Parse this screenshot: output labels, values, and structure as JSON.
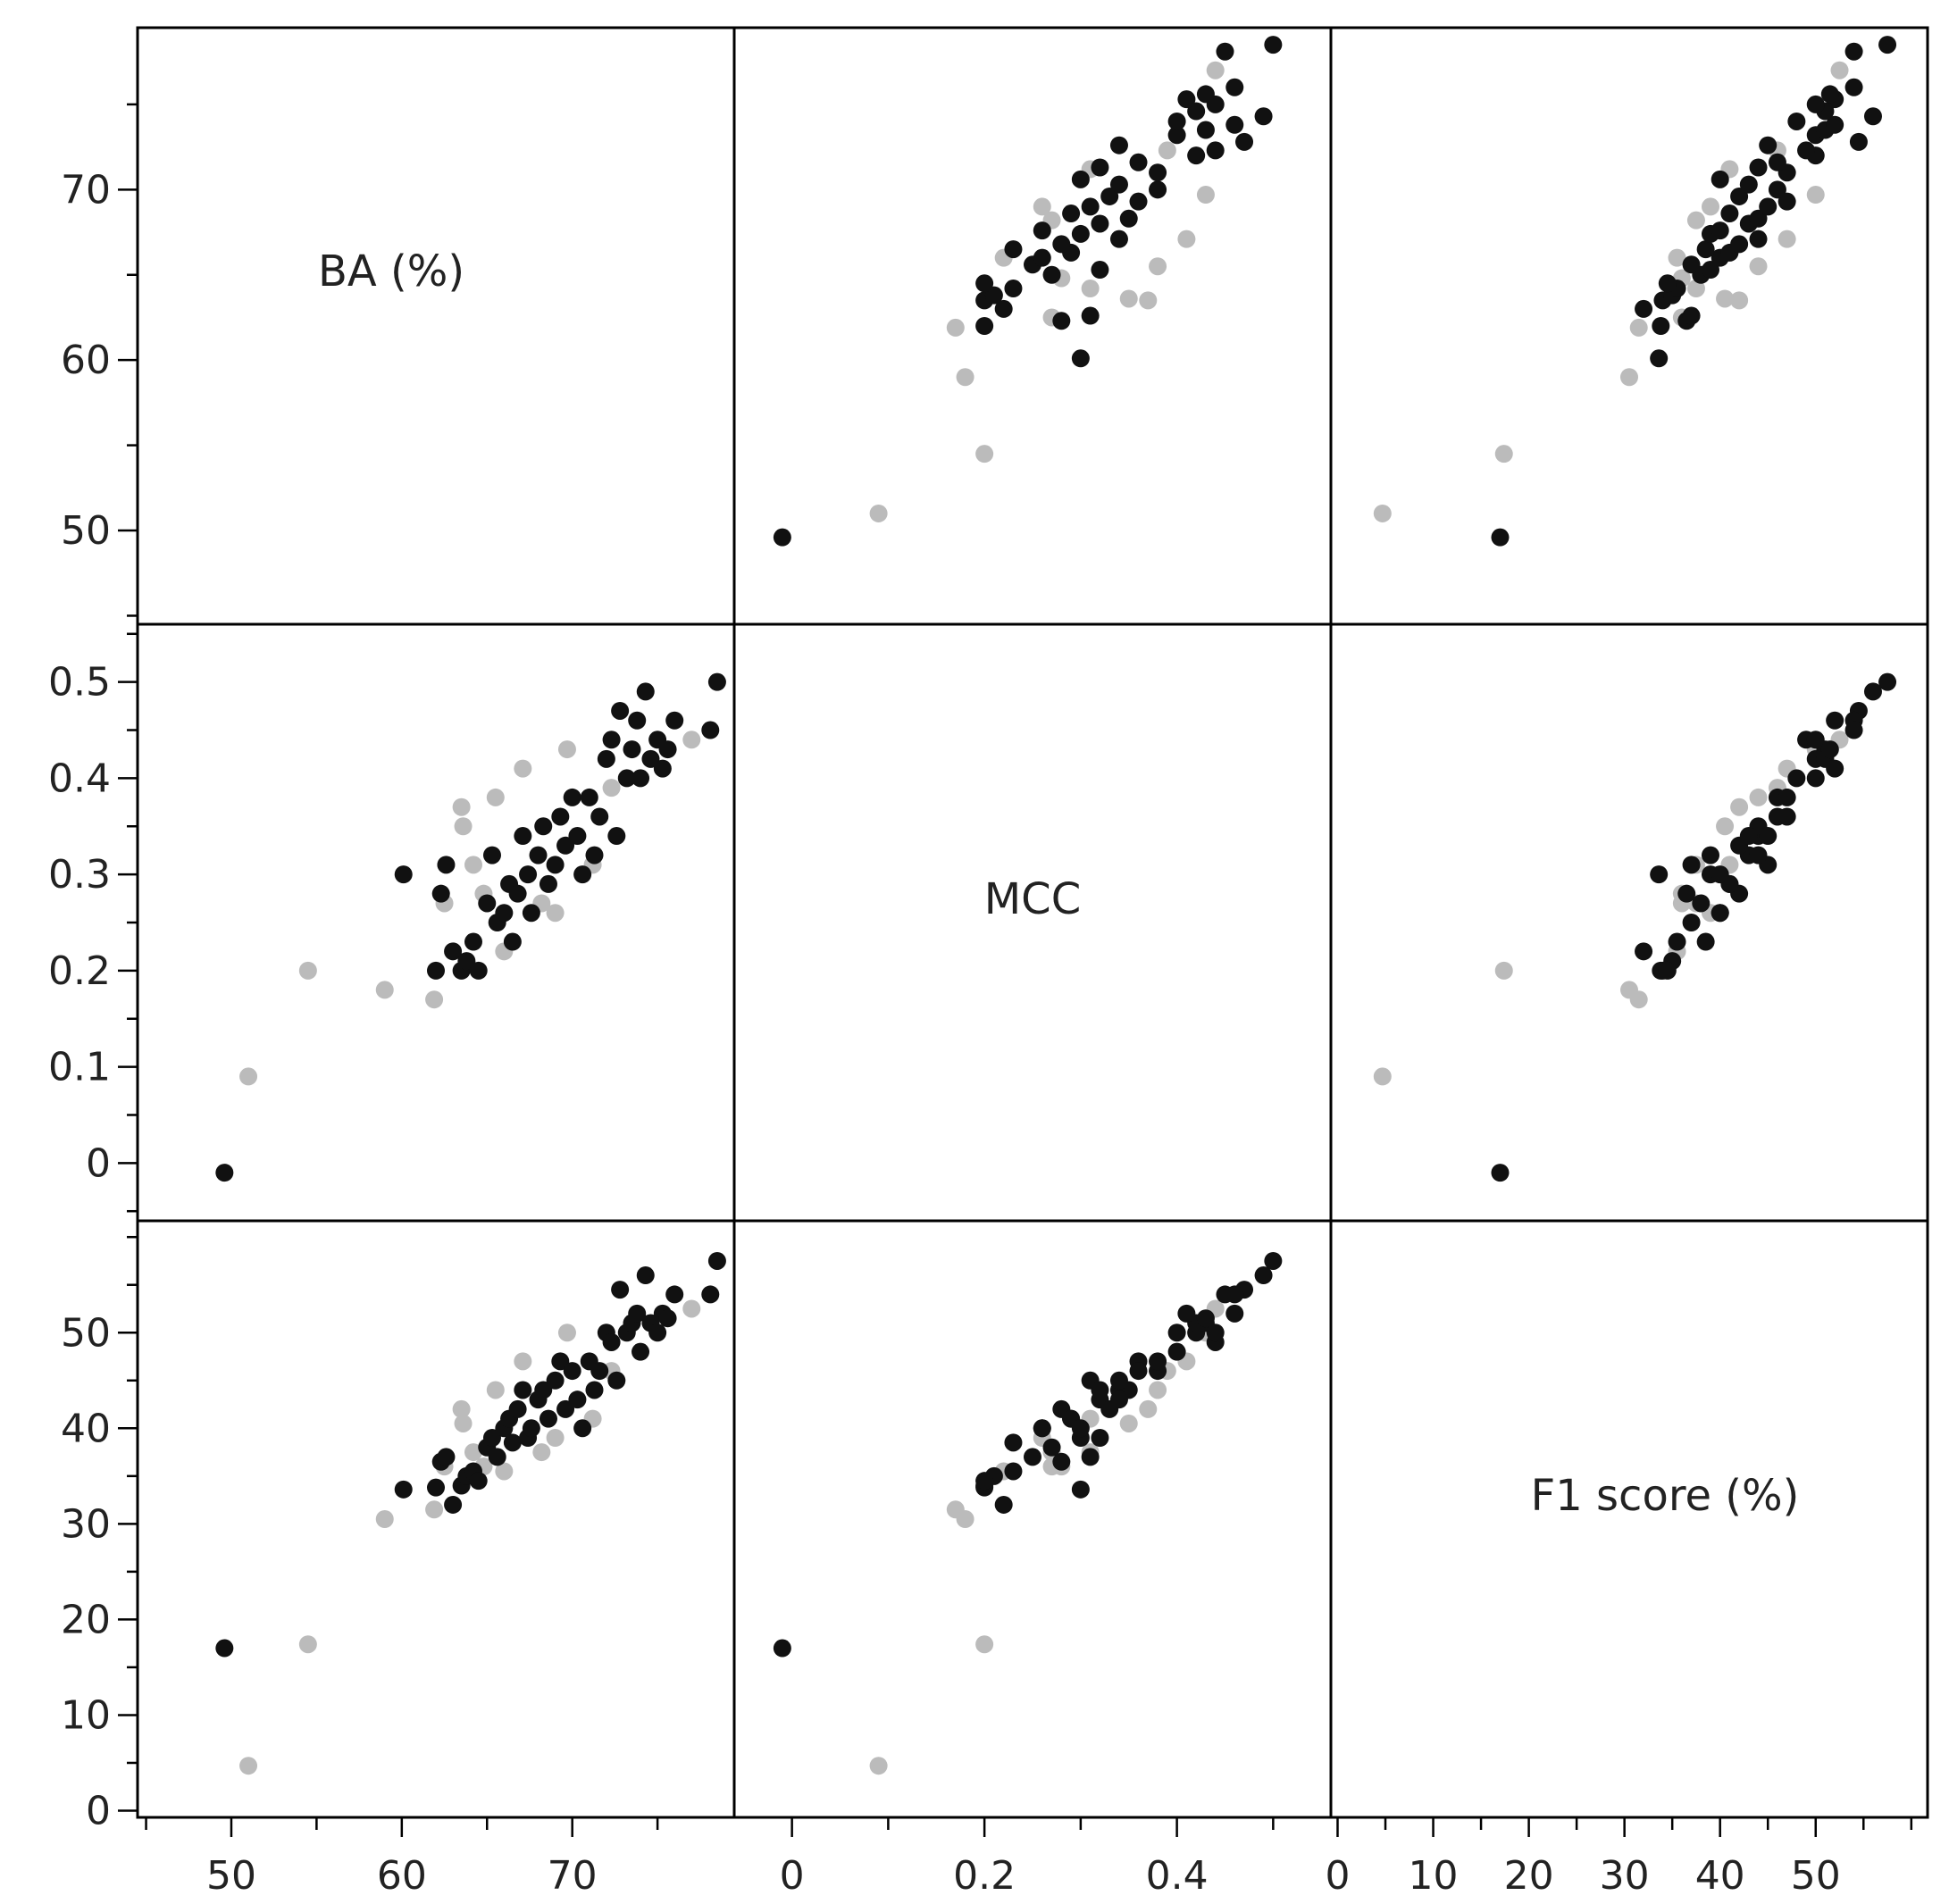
{
  "chart_data": {
    "type": "scatter",
    "variables": [
      {
        "key": "ba",
        "label": "BA (%)",
        "ticks": [
          50,
          60,
          70
        ],
        "range": [
          44.5,
          79.5
        ]
      },
      {
        "key": "mcc",
        "label": "MCC",
        "ticks": [
          0,
          0.1,
          0.2,
          0.3,
          0.4,
          0.5
        ],
        "ticks_x": [
          0,
          0.2,
          0.4
        ],
        "range": [
          -0.06,
          0.56
        ]
      },
      {
        "key": "f1",
        "label": "F1 score (%)",
        "ticks": [
          0,
          10,
          20,
          30,
          40,
          50
        ],
        "range": [
          -0.7,
          61.7
        ]
      }
    ],
    "colors": {
      "black": "#111111",
      "gray": "#bbbbbb"
    },
    "series": [
      {
        "name": "",
        "color": "black",
        "points": [
          [
            49.6,
            -0.01,
            17
          ],
          [
            60.1,
            0.3,
            33.6
          ],
          [
            62,
            0.2,
            33.8
          ],
          [
            62.3,
            0.28,
            36.5
          ],
          [
            62.6,
            0.31,
            37
          ],
          [
            63,
            0.22,
            32
          ],
          [
            63.5,
            0.2,
            34
          ],
          [
            63.8,
            0.21,
            35
          ],
          [
            64.2,
            0.23,
            35.5
          ],
          [
            64.5,
            0.2,
            34.5
          ],
          [
            65,
            0.27,
            38
          ],
          [
            65.3,
            0.32,
            39
          ],
          [
            65.6,
            0.25,
            37
          ],
          [
            66,
            0.26,
            40
          ],
          [
            66.3,
            0.29,
            41
          ],
          [
            66.5,
            0.23,
            38.5
          ],
          [
            66.8,
            0.28,
            42
          ],
          [
            67.1,
            0.34,
            44
          ],
          [
            67.4,
            0.3,
            39
          ],
          [
            67.6,
            0.26,
            40
          ],
          [
            68,
            0.32,
            43
          ],
          [
            68.3,
            0.35,
            44
          ],
          [
            68.6,
            0.29,
            41
          ],
          [
            69,
            0.31,
            45
          ],
          [
            69.3,
            0.36,
            47
          ],
          [
            69.6,
            0.33,
            42
          ],
          [
            70,
            0.38,
            46
          ],
          [
            70.3,
            0.34,
            43
          ],
          [
            70.6,
            0.3,
            40
          ],
          [
            71,
            0.38,
            47
          ],
          [
            71.3,
            0.32,
            44
          ],
          [
            71.6,
            0.36,
            46
          ],
          [
            72,
            0.42,
            50
          ],
          [
            72.3,
            0.44,
            49
          ],
          [
            72.6,
            0.34,
            45
          ],
          [
            72.8,
            0.47,
            54.5
          ],
          [
            73.2,
            0.4,
            50
          ],
          [
            73.5,
            0.43,
            51
          ],
          [
            73.8,
            0.46,
            52
          ],
          [
            74,
            0.4,
            48
          ],
          [
            74.3,
            0.49,
            56
          ],
          [
            74.6,
            0.42,
            51
          ],
          [
            75,
            0.44,
            50
          ],
          [
            75.3,
            0.41,
            52
          ],
          [
            75.6,
            0.43,
            51.5
          ],
          [
            76,
            0.46,
            54
          ],
          [
            78.1,
            0.45,
            54
          ],
          [
            78.5,
            0.5,
            57.5
          ]
        ]
      },
      {
        "name": "",
        "color": "gray",
        "points": [
          [
            51,
            0.09,
            4.7
          ],
          [
            54.5,
            0.2,
            17.4
          ],
          [
            59,
            0.18,
            30.5
          ],
          [
            61.9,
            0.17,
            31.5
          ],
          [
            62.5,
            0.27,
            36
          ],
          [
            63.5,
            0.37,
            42
          ],
          [
            63.6,
            0.35,
            40.5
          ],
          [
            64.2,
            0.31,
            37.5
          ],
          [
            64.8,
            0.28,
            36
          ],
          [
            65.5,
            0.38,
            44
          ],
          [
            66,
            0.22,
            35.5
          ],
          [
            67.1,
            0.41,
            47
          ],
          [
            68.2,
            0.27,
            37.5
          ],
          [
            69,
            0.26,
            39
          ],
          [
            69.7,
            0.43,
            50
          ],
          [
            71.2,
            0.31,
            41
          ],
          [
            72.3,
            0.39,
            46
          ],
          [
            77,
            0.44,
            52.5
          ]
        ]
      }
    ]
  }
}
